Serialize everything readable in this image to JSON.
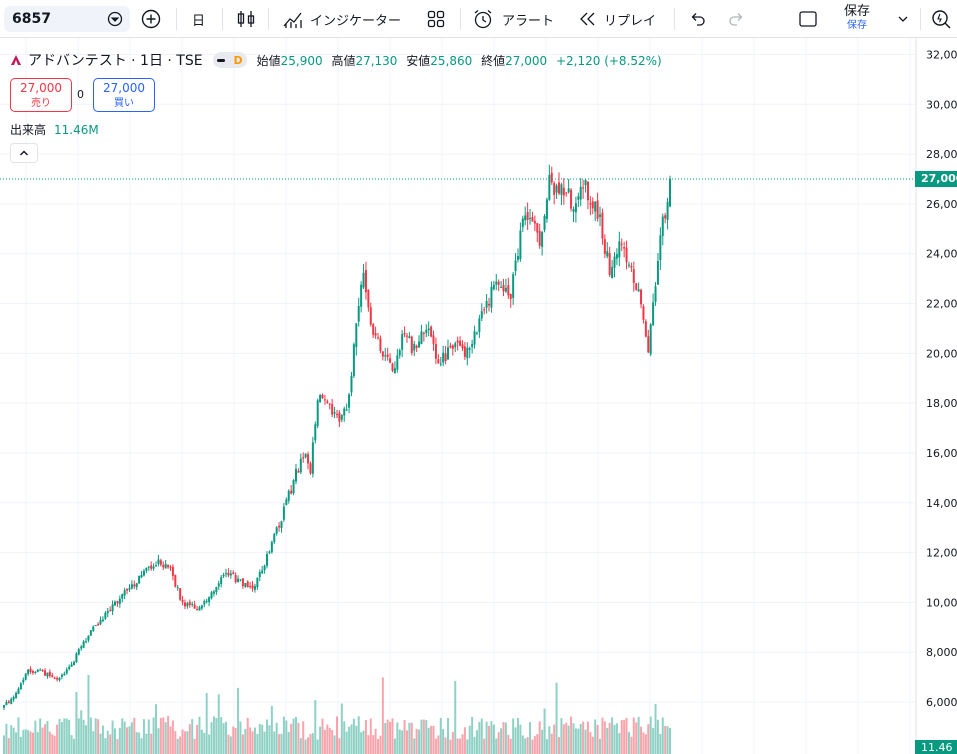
{
  "toolbar": {
    "symbol": "6857",
    "interval": "日",
    "indicators": "インジケーター",
    "alert": "アラート",
    "replay": "リプレイ",
    "save": "保存",
    "save_sub": "保存"
  },
  "legend": {
    "name": "アドバンテスト · 1日 · TSE",
    "badge": "D",
    "open_label": "始値",
    "open": "25,900",
    "high_label": "高値",
    "high": "27,130",
    "low_label": "安値",
    "low": "25,860",
    "close_label": "終値",
    "close": "27,000",
    "change": "+2,120 (+8.52%)"
  },
  "trade": {
    "sell_price": "27,000",
    "sell_label": "売り",
    "buy_price": "27,000",
    "buy_label": "買い",
    "spread": "0"
  },
  "volume": {
    "label": "出来高",
    "value": "11.46M",
    "axis_label": "11.46"
  },
  "colors": {
    "up": "#089981",
    "down": "#f23645",
    "grid": "#f0f3fa",
    "accent": "#2962ff"
  },
  "chart_data": {
    "type": "candlestick",
    "y_ticks": [
      "32,000",
      "30,000",
      "28,000",
      "26,000",
      "24,000",
      "22,000",
      "20,000",
      "18,000",
      "16,000",
      "14,000",
      "12,000",
      "10,000",
      "8,000",
      "6,000"
    ],
    "last_price": "27,000",
    "last_price_value": 27000,
    "ylim": [
      5400,
      32300
    ],
    "anchors": [
      [
        0,
        5800
      ],
      [
        6,
        6500
      ],
      [
        10,
        7300
      ],
      [
        16,
        7200
      ],
      [
        22,
        6900
      ],
      [
        28,
        7500
      ],
      [
        32,
        8200
      ],
      [
        38,
        9100
      ],
      [
        46,
        10000
      ],
      [
        54,
        10700
      ],
      [
        62,
        11600
      ],
      [
        68,
        11500
      ],
      [
        74,
        10000
      ],
      [
        80,
        9800
      ],
      [
        86,
        10400
      ],
      [
        92,
        11300
      ],
      [
        98,
        10800
      ],
      [
        103,
        10600
      ],
      [
        108,
        11500
      ],
      [
        112,
        12600
      ],
      [
        118,
        14300
      ],
      [
        124,
        16000
      ],
      [
        127,
        15300
      ],
      [
        130,
        18300
      ],
      [
        135,
        17800
      ],
      [
        139,
        17200
      ],
      [
        143,
        18100
      ],
      [
        146,
        21500
      ],
      [
        149,
        23000
      ],
      [
        152,
        21200
      ],
      [
        156,
        20300
      ],
      [
        161,
        19300
      ],
      [
        166,
        20900
      ],
      [
        170,
        20100
      ],
      [
        175,
        21000
      ],
      [
        180,
        19500
      ],
      [
        186,
        20300
      ],
      [
        192,
        20000
      ],
      [
        198,
        21400
      ],
      [
        204,
        23000
      ],
      [
        210,
        22300
      ],
      [
        216,
        25800
      ],
      [
        222,
        24500
      ],
      [
        226,
        26800
      ],
      [
        232,
        26500
      ],
      [
        236,
        26000
      ],
      [
        241,
        26700
      ],
      [
        246,
        25700
      ],
      [
        251,
        23300
      ],
      [
        256,
        24700
      ],
      [
        261,
        22900
      ],
      [
        264,
        22200
      ],
      [
        267,
        20100
      ],
      [
        269,
        22000
      ],
      [
        272,
        24900
      ],
      [
        275,
        25800
      ],
      [
        276,
        27000
      ]
    ],
    "volume_ymax": 12000000
  }
}
